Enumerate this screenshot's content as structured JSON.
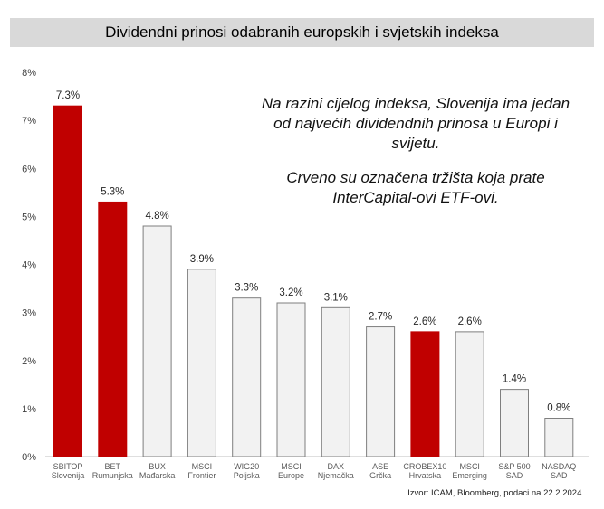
{
  "title": "Dividendni prinosi odabranih europskih i svjetskih indeksa",
  "annotation_line1": "Na razini cijelog indeksa, Slovenija ima jedan od najvećih dividendnih prinosa u Europi i svijetu.",
  "annotation_line2": "Crveno su označena tržišta koja prate InterCapital-ovi ETF-ovi.",
  "source": "Izvor: ICAM, Bloomberg, podaci na 22.2.2024.",
  "colors": {
    "highlight": "#c00000",
    "default": "#f2f2f2",
    "bar_border": "#7f7f7f"
  },
  "chart_data": {
    "type": "bar",
    "title": "Dividendni prinosi odabranih europskih i svjetskih indeksa",
    "categories": [
      [
        "SBITOP",
        "Slovenija"
      ],
      [
        "BET",
        "Rumunjska"
      ],
      [
        "BUX",
        "Mađarska"
      ],
      [
        "MSCI",
        "Frontier"
      ],
      [
        "WIG20",
        "Poljska"
      ],
      [
        "MSCI",
        "Europe"
      ],
      [
        "DAX",
        "Njemačka"
      ],
      [
        "ASE",
        "Grčka"
      ],
      [
        "CROBEX10",
        "Hrvatska"
      ],
      [
        "MSCI",
        "Emerging"
      ],
      [
        "S&P 500",
        "SAD"
      ],
      [
        "NASDAQ",
        "SAD"
      ]
    ],
    "values": [
      7.3,
      5.3,
      4.8,
      3.9,
      3.3,
      3.2,
      3.1,
      2.7,
      2.6,
      2.6,
      1.4,
      0.8
    ],
    "value_labels": [
      "7.3%",
      "5.3%",
      "4.8%",
      "3.9%",
      "3.3%",
      "3.2%",
      "3.1%",
      "2.7%",
      "2.6%",
      "2.6%",
      "1.4%",
      "0.8%"
    ],
    "highlighted": [
      true,
      true,
      false,
      false,
      false,
      false,
      false,
      false,
      true,
      false,
      false,
      false
    ],
    "ylim": [
      0,
      8
    ],
    "yticks": [
      "0%",
      "1%",
      "2%",
      "3%",
      "4%",
      "5%",
      "6%",
      "7%",
      "8%"
    ],
    "grid": false,
    "legend": "none"
  }
}
